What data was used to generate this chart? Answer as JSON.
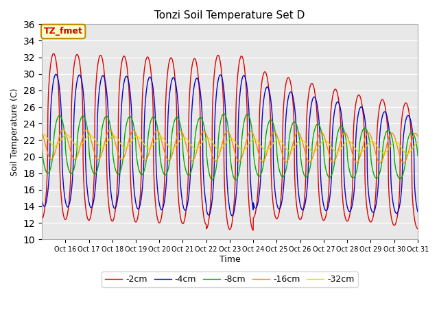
{
  "title": "Tonzi Soil Temperature Set D",
  "xlabel": "Time",
  "ylabel": "Soil Temperature (C)",
  "ylim": [
    10,
    36
  ],
  "xlim_days": [
    15,
    31
  ],
  "series_labels": [
    "-2cm",
    "-4cm",
    "-8cm",
    "-16cm",
    "-32cm"
  ],
  "series_colors": [
    "#dd0000",
    "#0000cc",
    "#00aa00",
    "#ff8800",
    "#dddd00"
  ],
  "legend_label": "TZ_fmet",
  "bg_color": "#e8e8e8"
}
